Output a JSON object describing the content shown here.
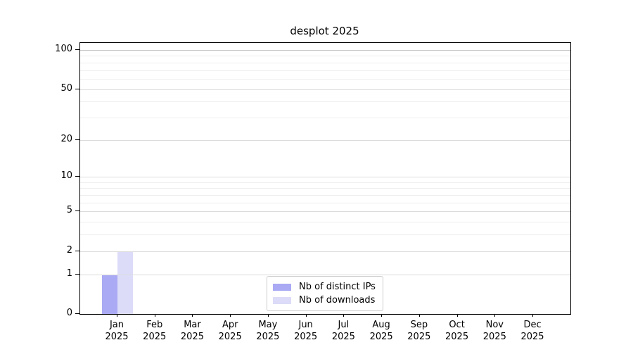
{
  "chart_data": {
    "type": "bar",
    "title": "desplot 2025",
    "categories": [
      "Jan",
      "Feb",
      "Mar",
      "Apr",
      "May",
      "Jun",
      "Jul",
      "Aug",
      "Sep",
      "Oct",
      "Nov",
      "Dec"
    ],
    "year_label": "2025",
    "series": [
      {
        "name": "Nb of distinct IPs",
        "color": "#a9a9f4",
        "values": [
          1,
          0,
          0,
          0,
          0,
          0,
          0,
          0,
          0,
          0,
          0,
          0
        ]
      },
      {
        "name": "Nb of downloads",
        "color": "#dcdcf8",
        "values": [
          2,
          0,
          0,
          0,
          0,
          0,
          0,
          0,
          0,
          0,
          0,
          0
        ]
      }
    ],
    "yscale": "log1p",
    "ylim": [
      0,
      113
    ],
    "y_major_ticks": [
      0,
      1,
      2,
      5,
      10,
      20,
      50,
      100
    ],
    "y_minor_ticks": [
      3,
      4,
      6,
      7,
      8,
      9,
      30,
      40,
      60,
      70,
      80,
      90
    ],
    "grid": true,
    "legend_position": "lower center inside"
  },
  "colors": {
    "background": "#ffffff",
    "spine": "#000000",
    "grid_top": "#c6c6c6",
    "grid_major": "#dcdcdc",
    "grid_minor": "#eeeeee",
    "tick_text": "#000000"
  }
}
